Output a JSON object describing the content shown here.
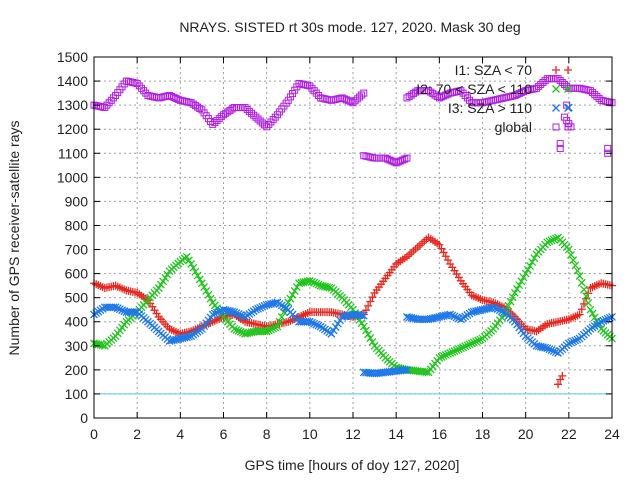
{
  "chart_data": {
    "type": "scatter",
    "title": "NRAYS. SISTED rt 30s mode. 127, 2020. Mask 30 deg",
    "xlabel": "GPS time [hours of doy 127, 2020]",
    "ylabel": "Number of GPS receiver-satellite rays",
    "xlim": [
      0,
      24
    ],
    "ylim": [
      0,
      1500
    ],
    "xticks": [
      "0",
      "2",
      "4",
      "6",
      "8",
      "10",
      "12",
      "14",
      "16",
      "18",
      "20",
      "22",
      "24"
    ],
    "yticks": [
      "0",
      "100",
      "200",
      "300",
      "400",
      "500",
      "600",
      "700",
      "800",
      "900",
      "1000",
      "1100",
      "1200",
      "1300",
      "1400",
      "1500"
    ],
    "grid": true,
    "legend_position": "top-right",
    "threshold_line": {
      "y": 100,
      "color": "#4fd1e0"
    },
    "series": [
      {
        "name": "I1: SZA < 70",
        "color": "#e8281f",
        "marker": "plus",
        "points": [
          [
            0,
            560
          ],
          [
            0.5,
            540
          ],
          [
            1,
            550
          ],
          [
            1.5,
            530
          ],
          [
            2,
            520
          ],
          [
            2.5,
            490
          ],
          [
            3,
            420
          ],
          [
            3.5,
            370
          ],
          [
            4,
            350
          ],
          [
            4.5,
            360
          ],
          [
            5,
            380
          ],
          [
            5.5,
            400
          ],
          [
            6,
            420
          ],
          [
            6.5,
            430
          ],
          [
            7,
            400
          ],
          [
            7.5,
            390
          ],
          [
            8,
            380
          ],
          [
            8.5,
            390
          ],
          [
            9,
            400
          ],
          [
            9.5,
            420
          ],
          [
            10,
            440
          ],
          [
            10.5,
            440
          ],
          [
            11,
            440
          ],
          [
            11.5,
            430
          ],
          [
            12,
            420
          ],
          [
            12.5,
            430
          ],
          [
            13,
            520
          ],
          [
            13.5,
            580
          ],
          [
            14,
            640
          ],
          [
            14.5,
            670
          ],
          [
            15,
            710
          ],
          [
            15.5,
            750
          ],
          [
            16,
            720
          ],
          [
            16.5,
            640
          ],
          [
            17,
            570
          ],
          [
            17.5,
            510
          ],
          [
            18,
            490
          ],
          [
            18.5,
            480
          ],
          [
            19,
            460
          ],
          [
            19.5,
            420
          ],
          [
            20,
            370
          ],
          [
            20.5,
            360
          ],
          [
            21,
            390
          ],
          [
            21.5,
            400
          ],
          [
            22,
            410
          ],
          [
            22.5,
            430
          ],
          [
            23,
            540
          ],
          [
            23.5,
            560
          ],
          [
            24,
            550
          ],
          [
            21.5,
            140
          ],
          [
            21.6,
            160
          ],
          [
            21.7,
            175
          ]
        ]
      },
      {
        "name": "I2: 70 < SZA < 110",
        "color": "#22c41e",
        "marker": "cross",
        "points": [
          [
            0,
            310
          ],
          [
            0.5,
            300
          ],
          [
            1,
            340
          ],
          [
            1.5,
            400
          ],
          [
            2,
            440
          ],
          [
            2.5,
            490
          ],
          [
            3,
            540
          ],
          [
            3.5,
            610
          ],
          [
            4,
            650
          ],
          [
            4.3,
            670
          ],
          [
            4.5,
            640
          ],
          [
            5,
            560
          ],
          [
            5.5,
            480
          ],
          [
            6,
            420
          ],
          [
            6.5,
            370
          ],
          [
            7,
            350
          ],
          [
            7.5,
            360
          ],
          [
            8,
            360
          ],
          [
            8.5,
            380
          ],
          [
            9,
            480
          ],
          [
            9.5,
            560
          ],
          [
            10,
            570
          ],
          [
            10.5,
            550
          ],
          [
            11,
            540
          ],
          [
            11.5,
            500
          ],
          [
            12,
            450
          ],
          [
            12.5,
            380
          ],
          [
            13,
            300
          ],
          [
            13.5,
            250
          ],
          [
            14,
            210
          ],
          [
            14.5,
            200
          ],
          [
            15,
            195
          ],
          [
            15.5,
            190
          ],
          [
            16,
            250
          ],
          [
            16.5,
            270
          ],
          [
            17,
            290
          ],
          [
            17.5,
            310
          ],
          [
            18,
            330
          ],
          [
            18.5,
            370
          ],
          [
            19,
            430
          ],
          [
            19.5,
            520
          ],
          [
            20,
            600
          ],
          [
            20.5,
            680
          ],
          [
            21,
            730
          ],
          [
            21.5,
            750
          ],
          [
            22,
            700
          ],
          [
            22.5,
            590
          ],
          [
            23,
            450
          ],
          [
            23.5,
            370
          ],
          [
            24,
            330
          ]
        ]
      },
      {
        "name": "I3: SZA > 110",
        "color": "#1e78e8",
        "marker": "cross",
        "points": [
          [
            0,
            430
          ],
          [
            0.5,
            460
          ],
          [
            1,
            460
          ],
          [
            1.5,
            440
          ],
          [
            2,
            440
          ],
          [
            2.5,
            400
          ],
          [
            3,
            360
          ],
          [
            3.5,
            320
          ],
          [
            4,
            330
          ],
          [
            4.5,
            340
          ],
          [
            5,
            370
          ],
          [
            5.5,
            430
          ],
          [
            6,
            450
          ],
          [
            6.5,
            440
          ],
          [
            7,
            420
          ],
          [
            7.5,
            450
          ],
          [
            8,
            470
          ],
          [
            8.5,
            480
          ],
          [
            9,
            450
          ],
          [
            9.5,
            400
          ],
          [
            10,
            400
          ],
          [
            10.5,
            380
          ],
          [
            11,
            350
          ],
          [
            11.5,
            420
          ],
          [
            12,
            430
          ],
          [
            12.5,
            425
          ],
          [
            12.5,
            190
          ],
          [
            13,
            185
          ],
          [
            13.5,
            190
          ],
          [
            14,
            195
          ],
          [
            14.5,
            200
          ],
          [
            14.5,
            420
          ],
          [
            15,
            410
          ],
          [
            15.5,
            410
          ],
          [
            16,
            420
          ],
          [
            16.5,
            430
          ],
          [
            17,
            410
          ],
          [
            17.5,
            440
          ],
          [
            18,
            450
          ],
          [
            18.5,
            460
          ],
          [
            19,
            440
          ],
          [
            19.5,
            400
          ],
          [
            20,
            340
          ],
          [
            20.5,
            300
          ],
          [
            21,
            290
          ],
          [
            21.5,
            270
          ],
          [
            22,
            310
          ],
          [
            22.5,
            330
          ],
          [
            23,
            370
          ],
          [
            23.5,
            400
          ],
          [
            24,
            420
          ],
          [
            22,
            1290
          ]
        ]
      },
      {
        "name": "global",
        "color": "#b020e0",
        "marker": "square",
        "points": [
          [
            0,
            1300
          ],
          [
            0.5,
            1290
          ],
          [
            1,
            1340
          ],
          [
            1.5,
            1400
          ],
          [
            2,
            1390
          ],
          [
            2.5,
            1340
          ],
          [
            3,
            1330
          ],
          [
            3.5,
            1340
          ],
          [
            4,
            1320
          ],
          [
            4.5,
            1310
          ],
          [
            5,
            1280
          ],
          [
            5.5,
            1220
          ],
          [
            6,
            1260
          ],
          [
            6.5,
            1290
          ],
          [
            7,
            1290
          ],
          [
            7.5,
            1250
          ],
          [
            8,
            1210
          ],
          [
            8.5,
            1260
          ],
          [
            9,
            1320
          ],
          [
            9.5,
            1390
          ],
          [
            10,
            1380
          ],
          [
            10.5,
            1330
          ],
          [
            11,
            1320
          ],
          [
            11.5,
            1330
          ],
          [
            12,
            1310
          ],
          [
            12.5,
            1350
          ],
          [
            12.5,
            1090
          ],
          [
            13,
            1080
          ],
          [
            13.5,
            1080
          ],
          [
            14,
            1060
          ],
          [
            14.5,
            1080
          ],
          [
            14.5,
            1330
          ],
          [
            15,
            1360
          ],
          [
            15.5,
            1360
          ],
          [
            16,
            1330
          ],
          [
            16.5,
            1350
          ],
          [
            17,
            1360
          ],
          [
            17.5,
            1310
          ],
          [
            18,
            1310
          ],
          [
            18.5,
            1320
          ],
          [
            19,
            1330
          ],
          [
            19.5,
            1340
          ],
          [
            20,
            1360
          ],
          [
            20.5,
            1370
          ],
          [
            21,
            1410
          ],
          [
            21.5,
            1410
          ],
          [
            22,
            1370
          ],
          [
            22.5,
            1370
          ],
          [
            23,
            1360
          ],
          [
            23.5,
            1320
          ],
          [
            24,
            1310
          ],
          [
            21.9,
            1300
          ],
          [
            21.8,
            1250
          ],
          [
            22.1,
            1210
          ],
          [
            21.6,
            1140
          ],
          [
            21.6,
            1120
          ],
          [
            23.8,
            1120
          ],
          [
            23.8,
            1100
          ]
        ]
      }
    ]
  }
}
